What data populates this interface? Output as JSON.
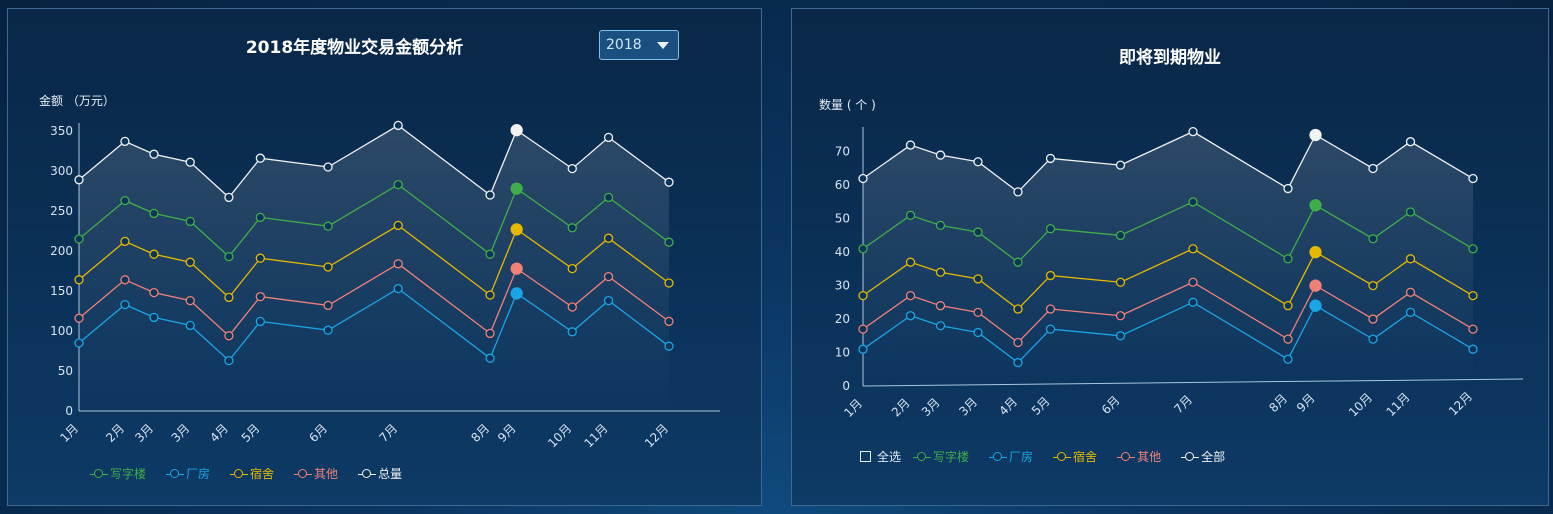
{
  "colors": {
    "写字楼": "#3fae49",
    "厂房": "#1aa5e6",
    "宿舍": "#e6b800",
    "其他": "#f08078",
    "总量": "#f2f2f2"
  },
  "panel1": {
    "title": "2018年度物业交易金额分析",
    "year_select": "2018"
  },
  "panel2": {
    "title": "即将到期物业",
    "legend_all": "全选"
  },
  "chart_data": [
    {
      "type": "line",
      "title": "2018年度物业交易金额分析",
      "ylabel": "金额 （万元）",
      "ylim": [
        0,
        350
      ],
      "yticks": [
        "0",
        "50",
        "100",
        "150",
        "200",
        "250",
        "300",
        "350"
      ],
      "categories": [
        "1月",
        "2月",
        "3月",
        "3月",
        "4月",
        "5月",
        "6月",
        "7月",
        "8月",
        "9月",
        "10月",
        "11月",
        "12月"
      ],
      "x_positions": [
        0,
        0.95,
        1.55,
        2.3,
        3.1,
        3.75,
        5.15,
        6.6,
        8.5,
        9.05,
        10.2,
        10.95,
        12.2
      ],
      "series": [
        {
          "name": "写字楼",
          "values": [
            215,
            263,
            247,
            237,
            193,
            242,
            231,
            283,
            196,
            278,
            229,
            267,
            211
          ]
        },
        {
          "name": "厂房",
          "values": [
            85,
            133,
            117,
            107,
            63,
            112,
            101,
            153,
            66,
            147,
            99,
            138,
            81
          ]
        },
        {
          "name": "宿舍",
          "values": [
            164,
            212,
            196,
            186,
            142,
            191,
            180,
            232,
            145,
            227,
            178,
            216,
            160
          ]
        },
        {
          "name": "其他",
          "values": [
            116,
            164,
            148,
            138,
            94,
            143,
            132,
            184,
            97,
            178,
            130,
            168,
            112
          ]
        },
        {
          "name": "总量",
          "values": [
            289,
            337,
            321,
            311,
            267,
            316,
            305,
            357,
            270,
            351,
            303,
            342,
            286
          ]
        }
      ],
      "highlight_index": 9,
      "grid": false,
      "legend_position": "bottom-left"
    },
    {
      "type": "line",
      "title": "即将到期物业",
      "ylabel": "数量 ( 个 )",
      "ylim": [
        0,
        75
      ],
      "yticks": [
        "0",
        "10",
        "20",
        "30",
        "40",
        "50",
        "60",
        "70"
      ],
      "categories": [
        "1月",
        "2月",
        "3月",
        "3月",
        "4月",
        "5月",
        "6月",
        "7月",
        "8月",
        "9月",
        "10月",
        "11月",
        "12月"
      ],
      "x_positions": [
        0,
        0.95,
        1.55,
        2.3,
        3.1,
        3.75,
        5.15,
        6.6,
        8.5,
        9.05,
        10.2,
        10.95,
        12.2
      ],
      "series": [
        {
          "name": "写字楼",
          "values": [
            41,
            51,
            48,
            46,
            37,
            47,
            45,
            55,
            38,
            54,
            44,
            52,
            41
          ]
        },
        {
          "name": "厂房",
          "values": [
            11,
            21,
            18,
            16,
            7,
            17,
            15,
            25,
            8,
            24,
            14,
            22,
            11
          ]
        },
        {
          "name": "宿舍",
          "values": [
            27,
            37,
            34,
            32,
            23,
            33,
            31,
            41,
            24,
            40,
            30,
            38,
            27
          ]
        },
        {
          "name": "其他",
          "values": [
            17,
            27,
            24,
            22,
            13,
            23,
            21,
            31,
            14,
            30,
            20,
            28,
            17
          ]
        },
        {
          "name": "全部",
          "values": [
            62,
            72,
            69,
            67,
            58,
            68,
            66,
            76,
            59,
            75,
            65,
            73,
            62
          ]
        }
      ],
      "highlight_index": 9,
      "grid": false,
      "legend_position": "bottom-left"
    }
  ]
}
